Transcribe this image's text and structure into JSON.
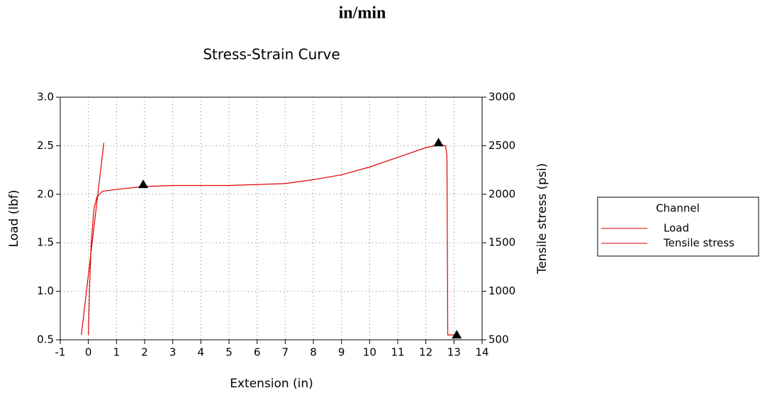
{
  "header": "in/min",
  "chart_data": {
    "type": "line",
    "title": "Stress-Strain Curve",
    "xlabel": "Extension (in)",
    "ylabel": "Load (lbf)",
    "y2label": "Tensile stress (psi)",
    "xlim": [
      -1,
      14
    ],
    "xticks": [
      -1,
      0,
      1,
      2,
      3,
      4,
      5,
      6,
      7,
      8,
      9,
      10,
      11,
      12,
      13,
      14
    ],
    "ylim": [
      0.5,
      3.0
    ],
    "yticks": [
      0.5,
      {
        "value": 1,
        "label": "1.0"
      },
      1.5,
      {
        "value": 2,
        "label": "2.0"
      },
      2.5,
      {
        "value": 3,
        "label": "3.0"
      }
    ],
    "y2lim": [
      500,
      3000
    ],
    "y2ticks": [
      500,
      1000,
      1500,
      2000,
      2500,
      3000
    ],
    "grid": true,
    "legend_title": "Channel",
    "legend": "right",
    "series": [
      {
        "name": "Load",
        "color": "#e00000",
        "x": [
          0,
          0.05,
          0.1,
          0.2,
          0.3,
          0.5,
          1,
          2,
          3,
          5,
          6,
          7,
          8,
          9,
          10,
          11,
          12,
          12.5,
          12.7,
          12.75,
          12.78,
          13.1
        ],
        "values": [
          0.55,
          1.1,
          1.5,
          1.85,
          1.97,
          2.03,
          2.05,
          2.08,
          2.09,
          2.09,
          2.1,
          2.11,
          2.15,
          2.2,
          2.28,
          2.38,
          2.48,
          2.51,
          2.5,
          2.4,
          0.55,
          0.55
        ]
      },
      {
        "name": "Tensile stress",
        "color": "#e00000",
        "axis": "y2",
        "x": [
          -0.25,
          0.55
        ],
        "values": [
          550,
          2530
        ]
      }
    ],
    "markers": {
      "color": "#000000",
      "x": [
        1.95,
        12.45,
        13.1
      ],
      "values": [
        2.1,
        2.53,
        0.55
      ]
    }
  }
}
